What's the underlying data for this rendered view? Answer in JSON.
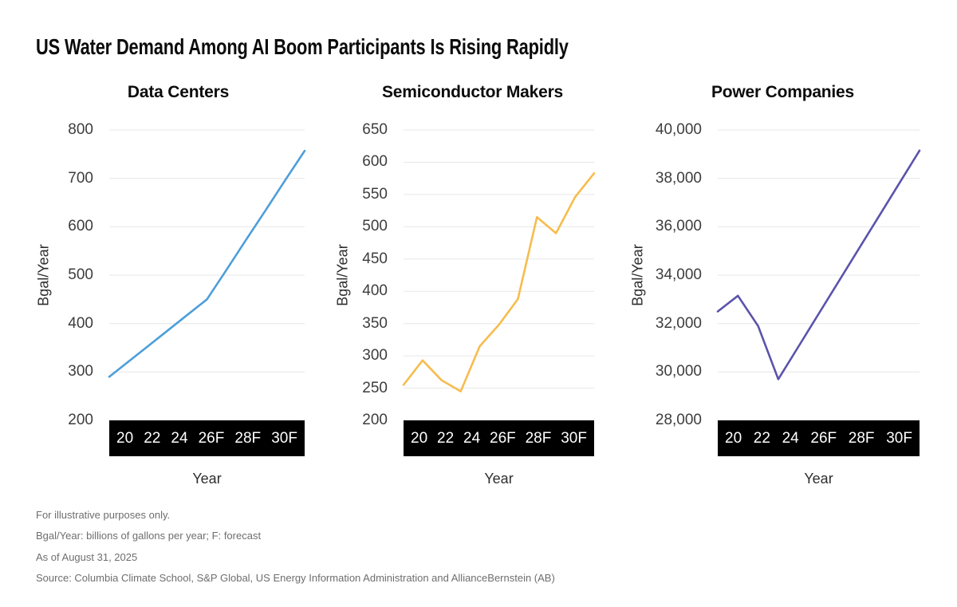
{
  "page_title": "US Water Demand Among AI Boom Participants Is Rising Rapidly",
  "chart_data": [
    {
      "type": "line",
      "title": "Data Centers",
      "xlabel": "Year",
      "ylabel": "Bgal/Year",
      "ylim": [
        200,
        800
      ],
      "grid": "horizontal",
      "color": "#4D9ED9",
      "y_tick_labels": [
        "800",
        "700",
        "600",
        "500",
        "400",
        "300",
        "200"
      ],
      "x_tick_labels": [
        "20",
        "22",
        "24",
        "26F",
        "28F",
        "30F"
      ],
      "x": [
        20,
        21,
        22,
        23,
        24,
        25,
        26,
        27,
        28,
        29,
        30
      ],
      "values": [
        290,
        322,
        354,
        386,
        418,
        450,
        511,
        573,
        634,
        696,
        757
      ]
    },
    {
      "type": "line",
      "title": "Semiconductor Makers",
      "xlabel": "Year",
      "ylabel": "Bgal/Year",
      "ylim": [
        200,
        650
      ],
      "grid": "horizontal",
      "color": "#F7BC4E",
      "y_tick_labels": [
        "650",
        "600",
        "550",
        "500",
        "450",
        "400",
        "350",
        "300",
        "250",
        "200"
      ],
      "x_tick_labels": [
        "20",
        "22",
        "24",
        "26F",
        "28F",
        "30F"
      ],
      "x": [
        20,
        21,
        22,
        23,
        24,
        25,
        26,
        27,
        28,
        29,
        30
      ],
      "values": [
        255,
        293,
        262,
        245,
        315,
        348,
        388,
        515,
        490,
        546,
        583
      ]
    },
    {
      "type": "line",
      "title": "Power Companies",
      "xlabel": "Year",
      "ylabel": "Bgal/Year",
      "ylim": [
        28000,
        40000
      ],
      "grid": "horizontal",
      "color": "#5B53AB",
      "y_tick_labels": [
        "40,000",
        "38,000",
        "36,000",
        "34,000",
        "32,000",
        "30,000",
        "28,000"
      ],
      "x_tick_labels": [
        "20",
        "22",
        "24",
        "26F",
        "28F",
        "30F"
      ],
      "x": [
        20,
        21,
        22,
        23,
        24,
        25,
        26,
        27,
        28,
        29,
        30
      ],
      "values": [
        32500,
        33150,
        31900,
        29700,
        31050,
        32400,
        33750,
        35100,
        36450,
        37800,
        39150
      ]
    }
  ],
  "footnotes": [
    "For illustrative purposes only.",
    "Bgal/Year: billions of gallons per year; F: forecast",
    "As of August 31, 2025",
    "Source: Columbia Climate School, S&P Global, US Energy Information Administration and AllianceBernstein (AB)"
  ]
}
